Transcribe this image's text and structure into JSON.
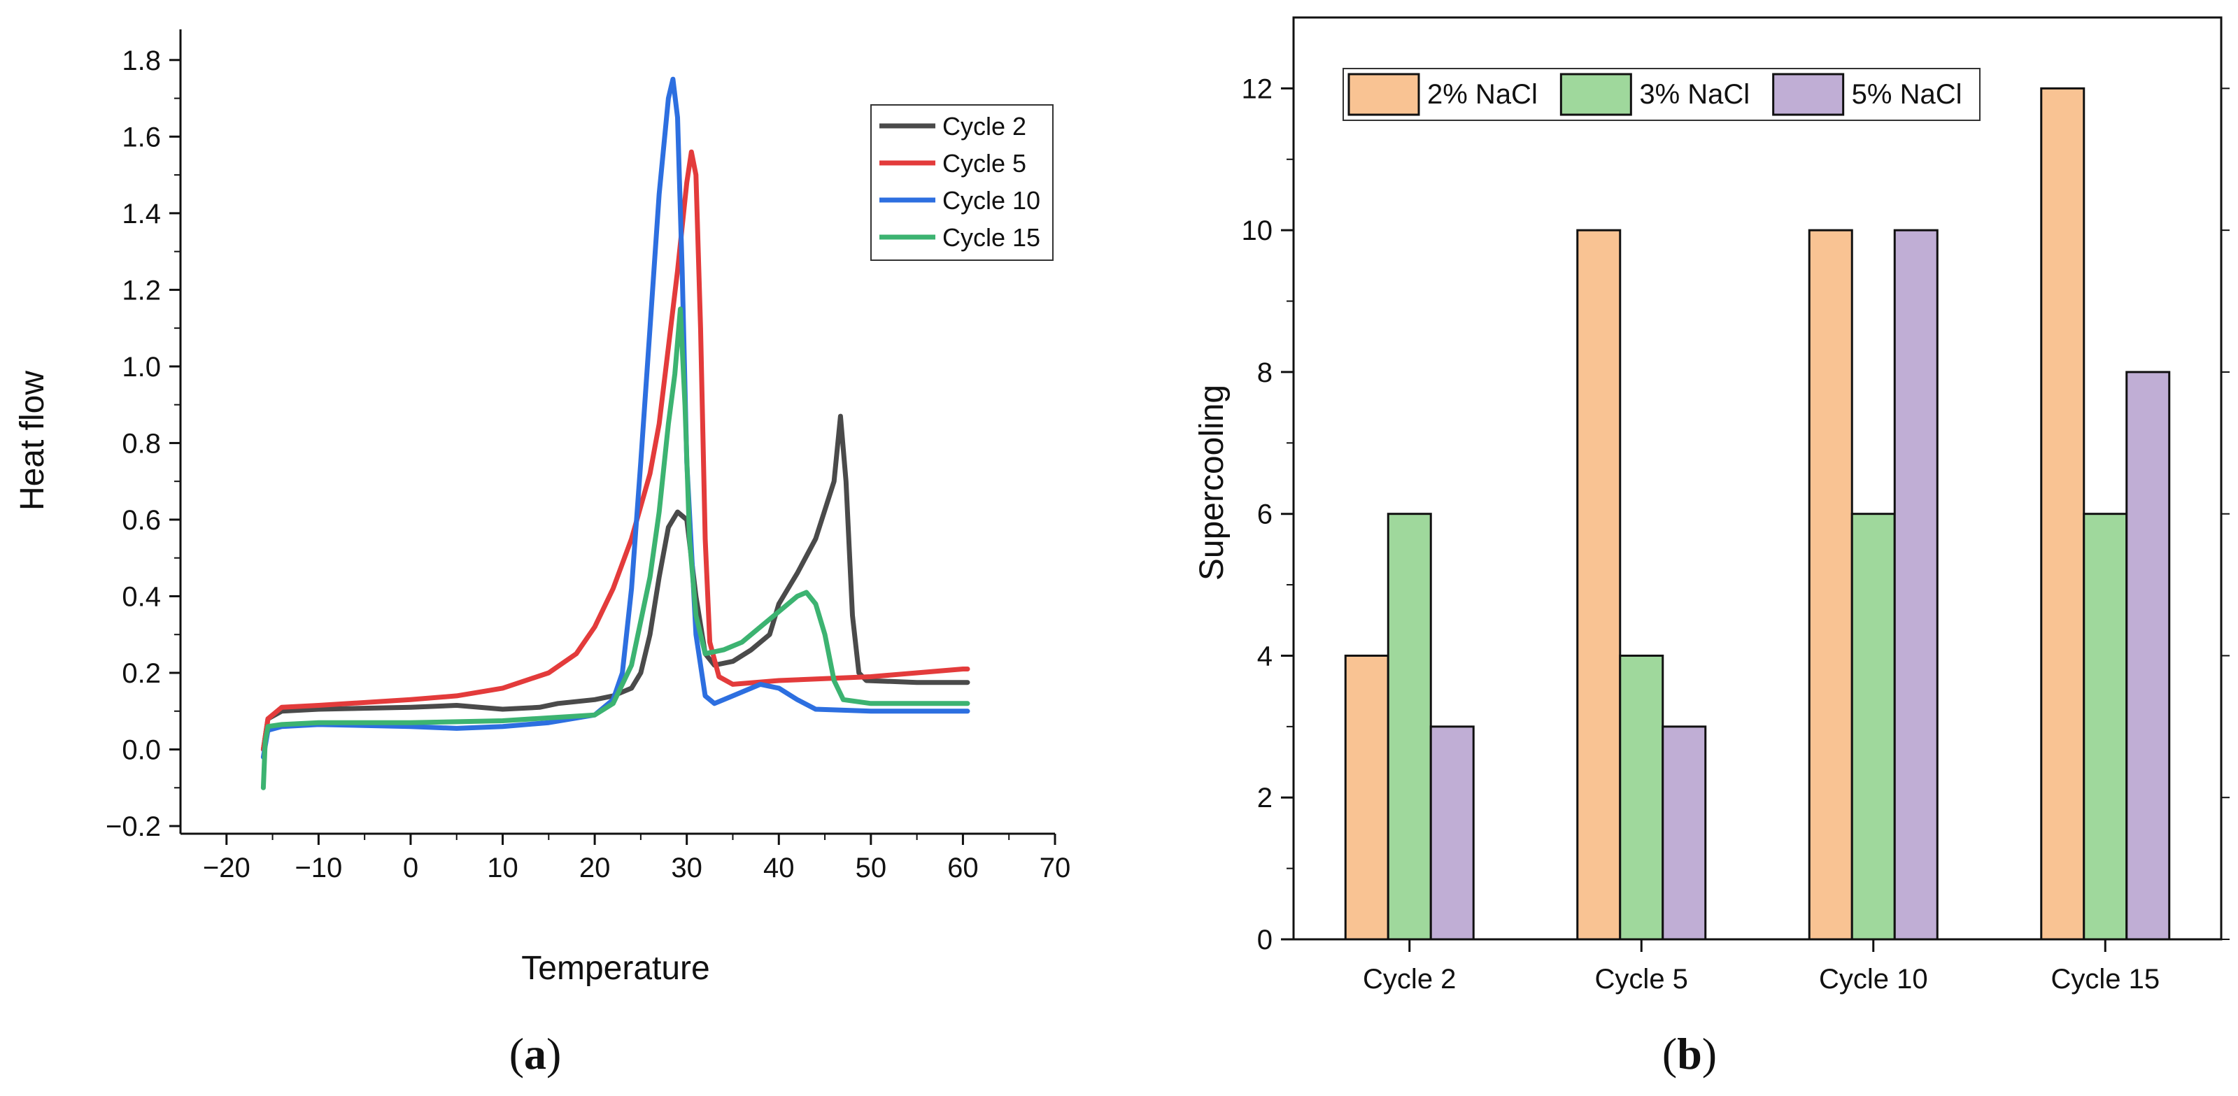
{
  "chart_data": [
    {
      "type": "line",
      "panel_label": {
        "open": "(",
        "letter": "a",
        "close": ")"
      },
      "xlabel": "Temperature",
      "ylabel": "Heat flow",
      "xlim": [
        -25,
        70
      ],
      "ylim": [
        -0.22,
        1.88
      ],
      "xticks": [
        "−20",
        "−10",
        "0",
        "10",
        "20",
        "30",
        "40",
        "50",
        "60",
        "70"
      ],
      "xtick_values": [
        -20,
        -10,
        0,
        10,
        20,
        30,
        40,
        50,
        60,
        70
      ],
      "yticks": [
        "−0.2",
        "0.0",
        "0.2",
        "0.4",
        "0.6",
        "0.8",
        "1.0",
        "1.2",
        "1.4",
        "1.6",
        "1.8"
      ],
      "ytick_values": [
        -0.2,
        0.0,
        0.2,
        0.4,
        0.6,
        0.8,
        1.0,
        1.2,
        1.4,
        1.6,
        1.8
      ],
      "legend_position": "top-right",
      "series": [
        {
          "name": "Cycle 2",
          "color": "#4a4a4a",
          "points": [
            [
              -16,
              0.0
            ],
            [
              -15.5,
              0.08
            ],
            [
              -14,
              0.1
            ],
            [
              -10,
              0.105
            ],
            [
              0,
              0.11
            ],
            [
              5,
              0.115
            ],
            [
              10,
              0.105
            ],
            [
              14,
              0.11
            ],
            [
              16,
              0.12
            ],
            [
              20,
              0.13
            ],
            [
              22,
              0.14
            ],
            [
              24,
              0.16
            ],
            [
              25,
              0.2
            ],
            [
              26,
              0.3
            ],
            [
              27,
              0.45
            ],
            [
              28,
              0.58
            ],
            [
              29,
              0.62
            ],
            [
              30,
              0.6
            ],
            [
              31,
              0.4
            ],
            [
              32,
              0.25
            ],
            [
              33,
              0.22
            ],
            [
              35,
              0.23
            ],
            [
              37,
              0.26
            ],
            [
              39,
              0.3
            ],
            [
              40,
              0.38
            ],
            [
              41,
              0.42
            ],
            [
              42,
              0.46
            ],
            [
              44,
              0.55
            ],
            [
              46,
              0.7
            ],
            [
              46.7,
              0.87
            ],
            [
              47.3,
              0.7
            ],
            [
              48,
              0.35
            ],
            [
              48.7,
              0.2
            ],
            [
              49.5,
              0.18
            ],
            [
              55,
              0.175
            ],
            [
              60.5,
              0.175
            ]
          ]
        },
        {
          "name": "Cycle 5",
          "color": "#e33b3b",
          "points": [
            [
              -16,
              0.0
            ],
            [
              -15.5,
              0.08
            ],
            [
              -14,
              0.11
            ],
            [
              -10,
              0.115
            ],
            [
              0,
              0.13
            ],
            [
              5,
              0.14
            ],
            [
              10,
              0.16
            ],
            [
              15,
              0.2
            ],
            [
              18,
              0.25
            ],
            [
              20,
              0.32
            ],
            [
              22,
              0.42
            ],
            [
              24,
              0.55
            ],
            [
              26,
              0.72
            ],
            [
              27,
              0.85
            ],
            [
              28,
              1.05
            ],
            [
              29,
              1.25
            ],
            [
              30,
              1.48
            ],
            [
              30.5,
              1.56
            ],
            [
              31,
              1.5
            ],
            [
              31.5,
              1.1
            ],
            [
              32,
              0.55
            ],
            [
              32.5,
              0.28
            ],
            [
              33.5,
              0.19
            ],
            [
              35,
              0.17
            ],
            [
              40,
              0.18
            ],
            [
              50,
              0.19
            ],
            [
              55,
              0.2
            ],
            [
              60,
              0.21
            ],
            [
              60.5,
              0.21
            ]
          ]
        },
        {
          "name": "Cycle 10",
          "color": "#2d6fe0",
          "points": [
            [
              -16,
              -0.02
            ],
            [
              -15.5,
              0.05
            ],
            [
              -14,
              0.06
            ],
            [
              -10,
              0.065
            ],
            [
              0,
              0.06
            ],
            [
              5,
              0.055
            ],
            [
              10,
              0.06
            ],
            [
              15,
              0.07
            ],
            [
              20,
              0.09
            ],
            [
              22,
              0.13
            ],
            [
              23,
              0.2
            ],
            [
              24,
              0.42
            ],
            [
              25,
              0.75
            ],
            [
              26,
              1.1
            ],
            [
              27,
              1.45
            ],
            [
              28,
              1.7
            ],
            [
              28.5,
              1.75
            ],
            [
              29,
              1.65
            ],
            [
              29.5,
              1.25
            ],
            [
              30,
              0.75
            ],
            [
              31,
              0.3
            ],
            [
              32,
              0.14
            ],
            [
              33,
              0.12
            ],
            [
              35,
              0.14
            ],
            [
              38,
              0.17
            ],
            [
              40,
              0.16
            ],
            [
              42,
              0.13
            ],
            [
              44,
              0.105
            ],
            [
              50,
              0.1
            ],
            [
              60.5,
              0.1
            ]
          ]
        },
        {
          "name": "Cycle 15",
          "color": "#3cb371",
          "points": [
            [
              -16,
              -0.1
            ],
            [
              -15.8,
              0.02
            ],
            [
              -15.5,
              0.06
            ],
            [
              -14,
              0.065
            ],
            [
              -10,
              0.07
            ],
            [
              0,
              0.07
            ],
            [
              10,
              0.075
            ],
            [
              20,
              0.09
            ],
            [
              22,
              0.12
            ],
            [
              24,
              0.22
            ],
            [
              26,
              0.45
            ],
            [
              27,
              0.62
            ],
            [
              28,
              0.85
            ],
            [
              28.7,
              0.98
            ],
            [
              29.3,
              1.15
            ],
            [
              29.8,
              0.9
            ],
            [
              30.3,
              0.55
            ],
            [
              31,
              0.35
            ],
            [
              32,
              0.25
            ],
            [
              34,
              0.26
            ],
            [
              36,
              0.28
            ],
            [
              38,
              0.32
            ],
            [
              40,
              0.36
            ],
            [
              42,
              0.4
            ],
            [
              43,
              0.41
            ],
            [
              44,
              0.38
            ],
            [
              45,
              0.3
            ],
            [
              46,
              0.18
            ],
            [
              47,
              0.13
            ],
            [
              50,
              0.12
            ],
            [
              60.5,
              0.12
            ]
          ]
        }
      ]
    },
    {
      "type": "bar",
      "panel_label": {
        "open": "(",
        "letter": "b",
        "close": ")"
      },
      "xlabel": "",
      "ylabel": "Supercooling",
      "ylim": [
        0,
        13
      ],
      "yticks": [
        "0",
        "2",
        "4",
        "6",
        "8",
        "10",
        "12"
      ],
      "ytick_values": [
        0,
        2,
        4,
        6,
        8,
        10,
        12
      ],
      "categories": [
        "Cycle 2",
        "Cycle 5",
        "Cycle 10",
        "Cycle 15"
      ],
      "legend_position": "top-left",
      "series": [
        {
          "name": "2% NaCl",
          "color": "#f9c393",
          "values": [
            4,
            10,
            10,
            12
          ]
        },
        {
          "name": "3% NaCl",
          "color": "#9fd89c",
          "values": [
            6,
            4,
            6,
            6
          ]
        },
        {
          "name": "5% NaCl",
          "color": "#c0aed5",
          "values": [
            3,
            3,
            10,
            8
          ]
        }
      ]
    }
  ]
}
